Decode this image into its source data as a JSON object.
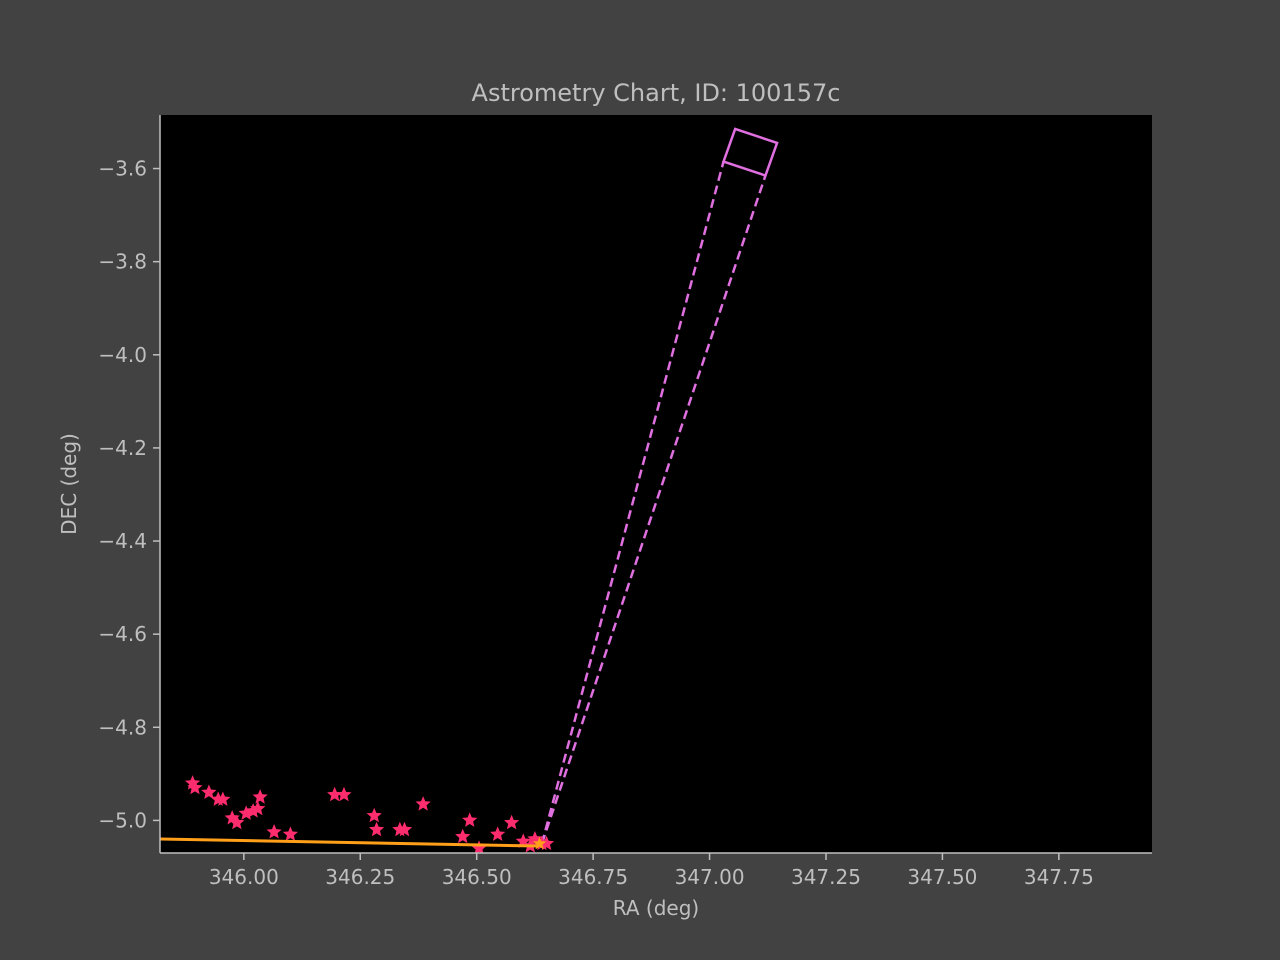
{
  "chart_data": {
    "type": "scatter",
    "title": "Astrometry Chart, ID: 100157c",
    "xlabel": "RA (deg)",
    "ylabel": "DEC (deg)",
    "xlim": [
      345.82,
      347.95
    ],
    "ylim": [
      -5.07,
      -3.485
    ],
    "grid": false,
    "xticks": [
      346.0,
      346.25,
      346.5,
      346.75,
      347.0,
      347.25,
      347.5,
      347.75
    ],
    "xtick_labels": [
      "346.00",
      "346.25",
      "346.50",
      "346.75",
      "347.00",
      "347.25",
      "347.50",
      "347.75"
    ],
    "yticks": [
      -3.6,
      -3.8,
      -4.0,
      -4.2,
      -4.4,
      -4.6,
      -4.8,
      -5.0
    ],
    "ytick_labels": [
      "−3.6",
      "−3.8",
      "−4.0",
      "−4.2",
      "−4.4",
      "−4.6",
      "−4.8",
      "−5.0"
    ],
    "colors": {
      "background": "#424242",
      "plot_area": "#000000",
      "text": "#bfbfbf",
      "axis": "#bfbfbf",
      "stars": "#ff2d6e",
      "track": "#ff9f1a",
      "field": "#e070e0"
    },
    "star_marker": "star",
    "stars": [
      [
        345.89,
        -4.92
      ],
      [
        345.895,
        -4.93
      ],
      [
        345.925,
        -4.94
      ],
      [
        345.945,
        -4.955
      ],
      [
        345.955,
        -4.955
      ],
      [
        345.975,
        -4.995
      ],
      [
        345.985,
        -5.005
      ],
      [
        346.005,
        -4.985
      ],
      [
        346.02,
        -4.98
      ],
      [
        346.03,
        -4.975
      ],
      [
        346.035,
        -4.95
      ],
      [
        346.065,
        -5.025
      ],
      [
        346.1,
        -5.03
      ],
      [
        346.195,
        -4.945
      ],
      [
        346.215,
        -4.945
      ],
      [
        346.28,
        -4.99
      ],
      [
        346.285,
        -5.02
      ],
      [
        346.335,
        -5.02
      ],
      [
        346.345,
        -5.02
      ],
      [
        346.385,
        -4.965
      ],
      [
        346.47,
        -5.035
      ],
      [
        346.485,
        -5.0
      ],
      [
        346.505,
        -5.06
      ],
      [
        346.545,
        -5.03
      ],
      [
        346.575,
        -5.005
      ],
      [
        346.6,
        -5.045
      ],
      [
        346.615,
        -5.055
      ],
      [
        346.625,
        -5.04
      ],
      [
        346.64,
        -5.05
      ],
      [
        346.65,
        -5.05
      ]
    ],
    "track": [
      [
        345.82,
        -5.04
      ],
      [
        346.63,
        -5.055
      ]
    ],
    "track_marker": [
      346.635,
      -5.05
    ],
    "field_box": [
      [
        347.055,
        -3.515
      ],
      [
        347.145,
        -3.545
      ],
      [
        347.12,
        -3.615
      ],
      [
        347.03,
        -3.585
      ]
    ],
    "projection_lines": [
      [
        [
          346.64,
          -5.05
        ],
        [
          347.03,
          -3.585
        ]
      ],
      [
        [
          346.64,
          -5.05
        ],
        [
          347.12,
          -3.615
        ]
      ]
    ]
  }
}
